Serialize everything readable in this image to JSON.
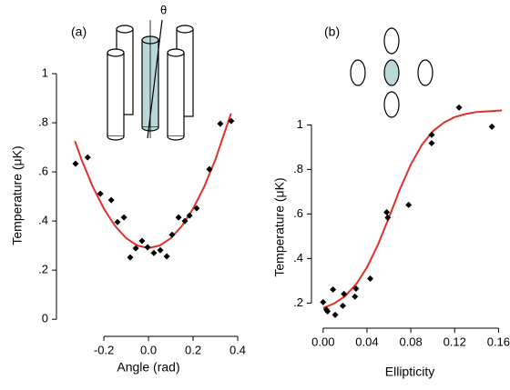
{
  "chart_data": [
    {
      "type": "scatter",
      "panel_label": "(a)",
      "annotation": "θ",
      "x_label": "Angle (rad)",
      "y_label": "Temperature (μK)",
      "xlim": [
        -0.38,
        0.4
      ],
      "ylim": [
        -0.04,
        1.1
      ],
      "xticks": [
        -0.2,
        {
          "value": 0,
          "label": "0.0"
        },
        0.2,
        0.4
      ],
      "yticks": [
        0,
        {
          "value": 0.2,
          "label": ".2"
        },
        {
          "value": 0.4,
          "label": ".4"
        },
        {
          "value": 0.6,
          "label": ".6"
        },
        {
          "value": 0.8,
          "label": ".8"
        },
        1
      ],
      "points": {
        "color": "#000000",
        "x": [
          -0.327,
          -0.273,
          -0.216,
          -0.167,
          -0.139,
          -0.11,
          -0.082,
          -0.057,
          -0.029,
          -0.004,
          0.024,
          0.053,
          0.082,
          0.106,
          0.135,
          0.163,
          0.184,
          0.216,
          0.273,
          0.322,
          0.371
        ],
        "values": [
          0.633,
          0.659,
          0.511,
          0.485,
          0.396,
          0.415,
          0.252,
          0.289,
          0.319,
          0.293,
          0.27,
          0.281,
          0.256,
          0.344,
          0.415,
          0.4,
          0.422,
          0.452,
          0.611,
          0.796,
          0.807
        ]
      },
      "fit": {
        "color": "#e0302c",
        "x": [
          -0.33,
          -0.3,
          -0.25,
          -0.2,
          -0.15,
          -0.1,
          -0.05,
          0,
          0.05,
          0.1,
          0.15,
          0.2,
          0.25,
          0.3,
          0.37
        ],
        "values": [
          0.726,
          0.65,
          0.54,
          0.45,
          0.38,
          0.33,
          0.3,
          0.29,
          0.3,
          0.33,
          0.38,
          0.45,
          0.54,
          0.65,
          0.838
        ]
      }
    },
    {
      "type": "scatter",
      "panel_label": "(b)",
      "x_label": "Ellipticity",
      "y_label": "Temperature (μK)",
      "xlim": [
        -0.004,
        0.163
      ],
      "ylim": [
        0.12,
        1.12
      ],
      "xticks": [
        {
          "value": 0,
          "label": "0.00"
        },
        0.04,
        0.08,
        0.12,
        0.16
      ],
      "yticks": [
        {
          "value": 0.2,
          "label": ".2"
        },
        {
          "value": 0.4,
          "label": ".4"
        },
        {
          "value": 0.6,
          "label": ".6"
        },
        {
          "value": 0.8,
          "label": ".8"
        },
        1
      ],
      "points": {
        "color": "#000000",
        "x": [
          0,
          0.003,
          0.004,
          0.009,
          0.011,
          0.018,
          0.019,
          0.029,
          0.03,
          0.043,
          0.058,
          0.059,
          0.078,
          0.099,
          0.099,
          0.124,
          0.154
        ],
        "values": [
          0.204,
          0.171,
          0.163,
          0.261,
          0.147,
          0.188,
          0.241,
          0.229,
          0.265,
          0.31,
          0.608,
          0.584,
          0.641,
          0.955,
          0.918,
          1.078,
          0.992
        ]
      },
      "fit": {
        "color": "#e0302c",
        "x": [
          0,
          0.01,
          0.02,
          0.03,
          0.04,
          0.05,
          0.06,
          0.07,
          0.08,
          0.09,
          0.1,
          0.11,
          0.12,
          0.13,
          0.14,
          0.163
        ],
        "values": [
          0.178,
          0.198,
          0.231,
          0.284,
          0.36,
          0.462,
          0.584,
          0.711,
          0.822,
          0.91,
          0.971,
          1.01,
          1.035,
          1.049,
          1.058,
          1.065
        ]
      }
    }
  ]
}
